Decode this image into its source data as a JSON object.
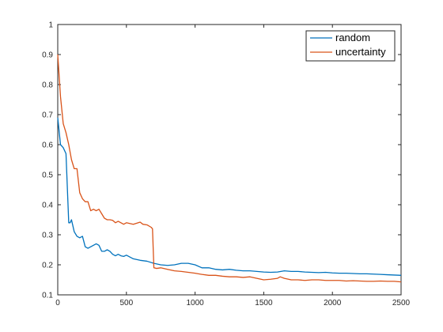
{
  "chart_data": {
    "type": "line",
    "title": "",
    "xlabel": "",
    "ylabel": "",
    "xlim": [
      0,
      2500
    ],
    "ylim": [
      0.1,
      1
    ],
    "xticks": [
      "0",
      "500",
      "1000",
      "1500",
      "2000",
      "2500"
    ],
    "yticks": [
      "0.1",
      "0.2",
      "0.3",
      "0.4",
      "0.5",
      "0.6",
      "0.7",
      "0.8",
      "0.9",
      "1"
    ],
    "grid": false,
    "legend_position": "top-right",
    "series": [
      {
        "name": "random",
        "color": "#0072BD",
        "x": [
          0,
          20,
          40,
          60,
          80,
          90,
          100,
          120,
          140,
          160,
          180,
          200,
          220,
          240,
          260,
          280,
          300,
          320,
          340,
          360,
          380,
          400,
          420,
          440,
          460,
          480,
          500,
          550,
          600,
          650,
          700,
          750,
          800,
          850,
          900,
          950,
          1000,
          1050,
          1100,
          1150,
          1200,
          1250,
          1300,
          1350,
          1400,
          1450,
          1500,
          1550,
          1600,
          1650,
          1700,
          1750,
          1800,
          1850,
          1900,
          1950,
          2000,
          2050,
          2100,
          2150,
          2200,
          2250,
          2300,
          2350,
          2400,
          2450,
          2500
        ],
        "y": [
          0.69,
          0.6,
          0.59,
          0.57,
          0.34,
          0.34,
          0.35,
          0.31,
          0.295,
          0.29,
          0.295,
          0.26,
          0.255,
          0.26,
          0.265,
          0.27,
          0.265,
          0.245,
          0.245,
          0.25,
          0.245,
          0.235,
          0.23,
          0.235,
          0.23,
          0.228,
          0.232,
          0.22,
          0.215,
          0.212,
          0.205,
          0.2,
          0.198,
          0.2,
          0.205,
          0.205,
          0.2,
          0.19,
          0.19,
          0.185,
          0.183,
          0.185,
          0.182,
          0.18,
          0.18,
          0.178,
          0.176,
          0.175,
          0.176,
          0.18,
          0.178,
          0.178,
          0.176,
          0.175,
          0.174,
          0.175,
          0.173,
          0.172,
          0.172,
          0.171,
          0.17,
          0.17,
          0.169,
          0.168,
          0.167,
          0.166,
          0.165
        ]
      },
      {
        "name": "uncertainty",
        "color": "#D95319",
        "x": [
          0,
          20,
          40,
          60,
          80,
          100,
          120,
          140,
          160,
          180,
          200,
          220,
          240,
          260,
          280,
          300,
          320,
          340,
          360,
          380,
          400,
          420,
          440,
          460,
          480,
          500,
          550,
          600,
          620,
          650,
          680,
          690,
          700,
          720,
          750,
          800,
          850,
          900,
          950,
          1000,
          1050,
          1100,
          1150,
          1200,
          1250,
          1300,
          1350,
          1400,
          1450,
          1500,
          1550,
          1600,
          1620,
          1650,
          1700,
          1750,
          1800,
          1850,
          1900,
          1950,
          2000,
          2050,
          2100,
          2150,
          2200,
          2250,
          2300,
          2350,
          2400,
          2450,
          2500
        ],
        "y": [
          0.9,
          0.76,
          0.67,
          0.64,
          0.6,
          0.55,
          0.52,
          0.52,
          0.44,
          0.42,
          0.41,
          0.41,
          0.38,
          0.385,
          0.38,
          0.385,
          0.37,
          0.355,
          0.35,
          0.35,
          0.348,
          0.34,
          0.345,
          0.34,
          0.335,
          0.34,
          0.335,
          0.342,
          0.335,
          0.333,
          0.325,
          0.32,
          0.19,
          0.188,
          0.19,
          0.185,
          0.18,
          0.178,
          0.175,
          0.172,
          0.168,
          0.165,
          0.165,
          0.162,
          0.16,
          0.16,
          0.158,
          0.16,
          0.155,
          0.15,
          0.152,
          0.155,
          0.16,
          0.155,
          0.15,
          0.15,
          0.148,
          0.15,
          0.15,
          0.148,
          0.148,
          0.148,
          0.146,
          0.147,
          0.146,
          0.145,
          0.145,
          0.146,
          0.145,
          0.145,
          0.143
        ]
      }
    ]
  }
}
